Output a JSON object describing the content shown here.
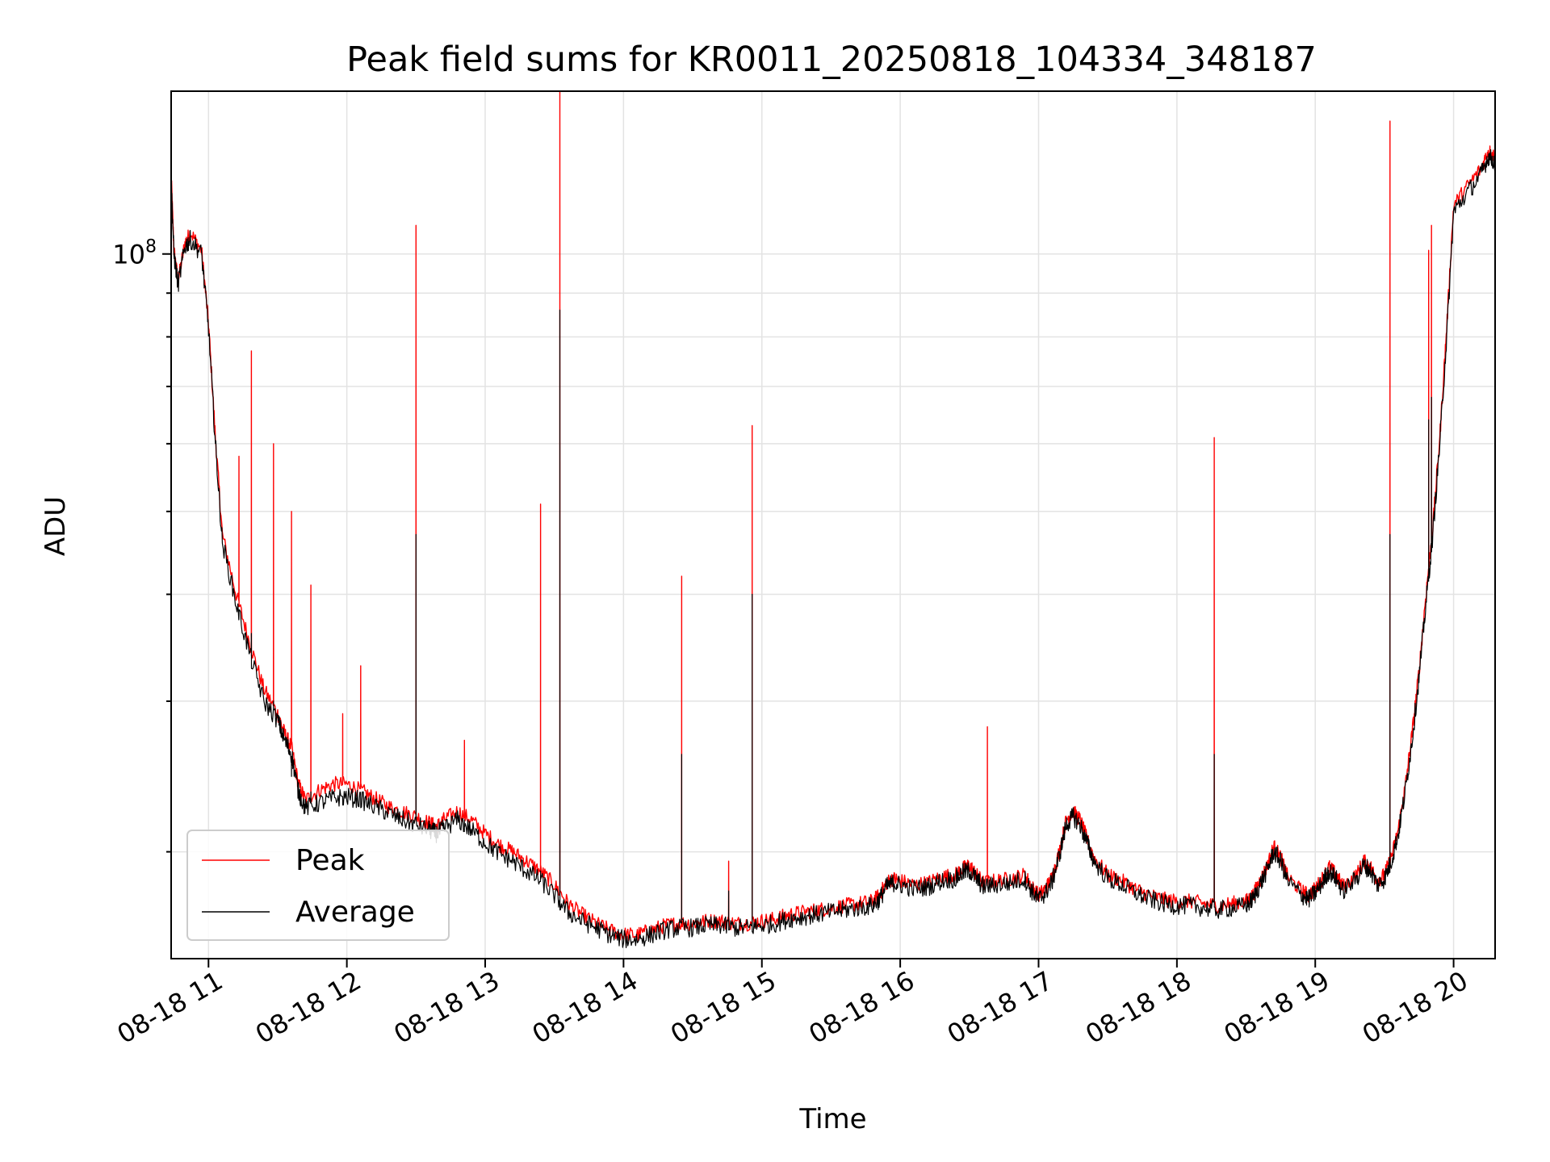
{
  "chart_data": {
    "type": "line",
    "title": "Peak field sums for KR0011_20250818_104334_348187",
    "xlabel": "Time",
    "ylabel": "ADU",
    "y_scale": "log",
    "x_tick_labels": [
      "08-18 11",
      "08-18 12",
      "08-18 13",
      "08-18 14",
      "08-18 15",
      "08-18 16",
      "08-18 17",
      "08-18 18",
      "08-18 19",
      "08-18 20"
    ],
    "y_tick_label": {
      "base": "10",
      "exponent": "8"
    },
    "x_range_hours": [
      10.73,
      20.3
    ],
    "ylim": [
      15000000,
      155000000
    ],
    "grid": true,
    "legend_position": "lower-left",
    "colors": {
      "Peak": "#ff0000",
      "Average": "#000000"
    },
    "series": [
      {
        "name": "Average",
        "points": [
          [
            10.73,
            122000000
          ],
          [
            10.75,
            100000000
          ],
          [
            10.78,
            92000000
          ],
          [
            10.83,
            102000000
          ],
          [
            10.87,
            104000000
          ],
          [
            10.95,
            100000000
          ],
          [
            11.0,
            82000000
          ],
          [
            11.05,
            60000000
          ],
          [
            11.1,
            46000000
          ],
          [
            11.2,
            39000000
          ],
          [
            11.3,
            34000000
          ],
          [
            11.4,
            30000000
          ],
          [
            11.5,
            28500000
          ],
          [
            11.55,
            27000000
          ],
          [
            11.6,
            26000000
          ],
          [
            11.65,
            23500000
          ],
          [
            11.7,
            22500000
          ],
          [
            11.8,
            22800000
          ],
          [
            11.9,
            23100000
          ],
          [
            12.0,
            23200000
          ],
          [
            12.1,
            23000000
          ],
          [
            12.2,
            22600000
          ],
          [
            12.3,
            22200000
          ],
          [
            12.4,
            21800000
          ],
          [
            12.5,
            21500000
          ],
          [
            12.6,
            21200000
          ],
          [
            12.65,
            21000000
          ],
          [
            12.7,
            21300000
          ],
          [
            12.8,
            21800000
          ],
          [
            12.9,
            21200000
          ],
          [
            13.0,
            20500000
          ],
          [
            13.1,
            19900000
          ],
          [
            13.2,
            19500000
          ],
          [
            13.3,
            19000000
          ],
          [
            13.4,
            18500000
          ],
          [
            13.5,
            17800000
          ],
          [
            13.6,
            17000000
          ],
          [
            13.7,
            16600000
          ],
          [
            13.8,
            16300000
          ],
          [
            13.9,
            16000000
          ],
          [
            14.0,
            15800000
          ],
          [
            14.1,
            15800000
          ],
          [
            14.2,
            16000000
          ],
          [
            14.3,
            16200000
          ],
          [
            14.4,
            16300000
          ],
          [
            14.5,
            16300000
          ],
          [
            14.6,
            16400000
          ],
          [
            14.7,
            16400000
          ],
          [
            14.8,
            16300000
          ],
          [
            14.9,
            16300000
          ],
          [
            15.0,
            16400000
          ],
          [
            15.1,
            16500000
          ],
          [
            15.2,
            16700000
          ],
          [
            15.3,
            16800000
          ],
          [
            15.4,
            16900000
          ],
          [
            15.5,
            17000000
          ],
          [
            15.6,
            17100000
          ],
          [
            15.7,
            17200000
          ],
          [
            15.8,
            17300000
          ],
          [
            15.85,
            17600000
          ],
          [
            15.9,
            18200000
          ],
          [
            15.95,
            18400000
          ],
          [
            16.0,
            18300000
          ],
          [
            16.1,
            18100000
          ],
          [
            16.2,
            18200000
          ],
          [
            16.3,
            18500000
          ],
          [
            16.4,
            18600000
          ],
          [
            16.45,
            18900000
          ],
          [
            16.5,
            19000000
          ],
          [
            16.55,
            18600000
          ],
          [
            16.6,
            18200000
          ],
          [
            16.7,
            18300000
          ],
          [
            16.8,
            18400000
          ],
          [
            16.9,
            18600000
          ],
          [
            16.95,
            18000000
          ],
          [
            17.0,
            17600000
          ],
          [
            17.05,
            17900000
          ],
          [
            17.1,
            18500000
          ],
          [
            17.15,
            19800000
          ],
          [
            17.2,
            21500000
          ],
          [
            17.25,
            22000000
          ],
          [
            17.3,
            21500000
          ],
          [
            17.35,
            20500000
          ],
          [
            17.4,
            19500000
          ],
          [
            17.5,
            18600000
          ],
          [
            17.6,
            18300000
          ],
          [
            17.7,
            17900000
          ],
          [
            17.8,
            17600000
          ],
          [
            17.9,
            17400000
          ],
          [
            18.0,
            17300000
          ],
          [
            18.1,
            17300000
          ],
          [
            18.2,
            17200000
          ],
          [
            18.3,
            17100000
          ],
          [
            18.4,
            17200000
          ],
          [
            18.5,
            17300000
          ],
          [
            18.55,
            17600000
          ],
          [
            18.6,
            18300000
          ],
          [
            18.65,
            19000000
          ],
          [
            18.7,
            20000000
          ],
          [
            18.75,
            19500000
          ],
          [
            18.8,
            18500000
          ],
          [
            18.9,
            17800000
          ],
          [
            18.95,
            17600000
          ],
          [
            19.0,
            17900000
          ],
          [
            19.05,
            18400000
          ],
          [
            19.1,
            19000000
          ],
          [
            19.15,
            18600000
          ],
          [
            19.2,
            18000000
          ],
          [
            19.3,
            18600000
          ],
          [
            19.35,
            19300000
          ],
          [
            19.4,
            19000000
          ],
          [
            19.45,
            18300000
          ],
          [
            19.5,
            18600000
          ],
          [
            19.55,
            19500000
          ],
          [
            19.6,
            21000000
          ],
          [
            19.65,
            23500000
          ],
          [
            19.7,
            27000000
          ],
          [
            19.75,
            32000000
          ],
          [
            19.8,
            39000000
          ],
          [
            19.85,
            47000000
          ],
          [
            19.9,
            60000000
          ],
          [
            19.95,
            80000000
          ],
          [
            20.0,
            112000000
          ],
          [
            20.1,
            118000000
          ],
          [
            20.2,
            124000000
          ],
          [
            20.25,
            130000000
          ],
          [
            20.3,
            128000000
          ]
        ]
      },
      {
        "name": "Peak",
        "points": [
          [
            10.73,
            124000000
          ],
          [
            10.75,
            101000000
          ],
          [
            10.78,
            93000000
          ],
          [
            10.83,
            103000000
          ],
          [
            10.87,
            106000000
          ],
          [
            10.95,
            101000000
          ],
          [
            11.0,
            83000000
          ],
          [
            11.05,
            61000000
          ],
          [
            11.1,
            47000000
          ],
          [
            11.2,
            40000000
          ],
          [
            11.3,
            35000000
          ],
          [
            11.4,
            31000000
          ],
          [
            11.5,
            29000000
          ],
          [
            11.55,
            27500000
          ],
          [
            11.6,
            26500000
          ],
          [
            11.65,
            24000000
          ],
          [
            11.7,
            23000000
          ],
          [
            11.8,
            23600000
          ],
          [
            11.9,
            24000000
          ],
          [
            12.0,
            24000000
          ],
          [
            12.1,
            23600000
          ],
          [
            12.2,
            23100000
          ],
          [
            12.3,
            22600000
          ],
          [
            12.4,
            22300000
          ],
          [
            12.5,
            22000000
          ],
          [
            12.6,
            21600000
          ],
          [
            12.65,
            21400000
          ],
          [
            12.7,
            21800000
          ],
          [
            12.8,
            22300000
          ],
          [
            12.9,
            21800000
          ],
          [
            13.0,
            21000000
          ],
          [
            13.1,
            20400000
          ],
          [
            13.2,
            20000000
          ],
          [
            13.3,
            19500000
          ],
          [
            13.4,
            19000000
          ],
          [
            13.5,
            18300000
          ],
          [
            13.6,
            17400000
          ],
          [
            13.7,
            16900000
          ],
          [
            13.8,
            16500000
          ],
          [
            13.9,
            16200000
          ],
          [
            14.0,
            16000000
          ],
          [
            14.1,
            16000000
          ],
          [
            14.2,
            16200000
          ],
          [
            14.3,
            16400000
          ],
          [
            14.4,
            16500000
          ],
          [
            14.5,
            16500000
          ],
          [
            14.6,
            16600000
          ],
          [
            14.7,
            16600000
          ],
          [
            14.8,
            16500000
          ],
          [
            14.9,
            16500000
          ],
          [
            15.0,
            16600000
          ],
          [
            15.1,
            16700000
          ],
          [
            15.2,
            16900000
          ],
          [
            15.3,
            17000000
          ],
          [
            15.4,
            17100000
          ],
          [
            15.5,
            17200000
          ],
          [
            15.6,
            17300000
          ],
          [
            15.7,
            17400000
          ],
          [
            15.8,
            17500000
          ],
          [
            15.85,
            17800000
          ],
          [
            15.9,
            18400000
          ],
          [
            15.95,
            18600000
          ],
          [
            16.0,
            18500000
          ],
          [
            16.1,
            18300000
          ],
          [
            16.2,
            18400000
          ],
          [
            16.3,
            18700000
          ],
          [
            16.4,
            18800000
          ],
          [
            16.45,
            19100000
          ],
          [
            16.5,
            19300000
          ],
          [
            16.55,
            18800000
          ],
          [
            16.6,
            18400000
          ],
          [
            16.7,
            18500000
          ],
          [
            16.8,
            18600000
          ],
          [
            16.9,
            18800000
          ],
          [
            16.95,
            18200000
          ],
          [
            17.0,
            17800000
          ],
          [
            17.05,
            18100000
          ],
          [
            17.1,
            18700000
          ],
          [
            17.15,
            20000000
          ],
          [
            17.2,
            21800000
          ],
          [
            17.25,
            22300000
          ],
          [
            17.3,
            21800000
          ],
          [
            17.35,
            20700000
          ],
          [
            17.4,
            19700000
          ],
          [
            17.5,
            18800000
          ],
          [
            17.6,
            18500000
          ],
          [
            17.7,
            18100000
          ],
          [
            17.8,
            17800000
          ],
          [
            17.9,
            17600000
          ],
          [
            18.0,
            17500000
          ],
          [
            18.1,
            17500000
          ],
          [
            18.2,
            17400000
          ],
          [
            18.3,
            17300000
          ],
          [
            18.4,
            17400000
          ],
          [
            18.5,
            17500000
          ],
          [
            18.55,
            17800000
          ],
          [
            18.6,
            18500000
          ],
          [
            18.65,
            19200000
          ],
          [
            18.7,
            20300000
          ],
          [
            18.75,
            19700000
          ],
          [
            18.8,
            18700000
          ],
          [
            18.9,
            18000000
          ],
          [
            18.95,
            17800000
          ],
          [
            19.0,
            18100000
          ],
          [
            19.05,
            18600000
          ],
          [
            19.1,
            19200000
          ],
          [
            19.15,
            18800000
          ],
          [
            19.2,
            18200000
          ],
          [
            19.3,
            18800000
          ],
          [
            19.35,
            19500000
          ],
          [
            19.4,
            19200000
          ],
          [
            19.45,
            18500000
          ],
          [
            19.5,
            18800000
          ],
          [
            19.55,
            19700000
          ],
          [
            19.6,
            21200000
          ],
          [
            19.65,
            23800000
          ],
          [
            19.7,
            27500000
          ],
          [
            19.75,
            32500000
          ],
          [
            19.8,
            40000000
          ],
          [
            19.85,
            48000000
          ],
          [
            19.9,
            61000000
          ],
          [
            19.95,
            82000000
          ],
          [
            20.0,
            114000000
          ],
          [
            20.1,
            120000000
          ],
          [
            20.2,
            126000000
          ],
          [
            20.25,
            132000000
          ],
          [
            20.3,
            130000000
          ]
        ],
        "spikes": [
          {
            "x": 11.22,
            "peak": 58000000,
            "avg": 38000000
          },
          {
            "x": 11.31,
            "peak": 77000000,
            "avg": 36000000
          },
          {
            "x": 11.47,
            "peak": 60000000,
            "avg": 30000000
          },
          {
            "x": 11.6,
            "peak": 50000000,
            "avg": 24500000
          },
          {
            "x": 11.74,
            "peak": 41000000,
            "avg": 23500000
          },
          {
            "x": 11.97,
            "peak": 29000000,
            "avg": 23000000
          },
          {
            "x": 12.1,
            "peak": 33000000,
            "avg": 23000000
          },
          {
            "x": 12.5,
            "peak": 108000000,
            "avg": 47000000
          },
          {
            "x": 12.85,
            "peak": 27000000,
            "avg": 21800000
          },
          {
            "x": 13.4,
            "peak": 51000000,
            "avg": 19000000
          },
          {
            "x": 13.54,
            "peak": 155000000,
            "avg": 86000000
          },
          {
            "x": 14.42,
            "peak": 42000000,
            "avg": 26000000
          },
          {
            "x": 14.76,
            "peak": 19500000,
            "avg": 18000000
          },
          {
            "x": 14.93,
            "peak": 63000000,
            "avg": 40000000
          },
          {
            "x": 16.63,
            "peak": 28000000,
            "avg": 18500000
          },
          {
            "x": 18.27,
            "peak": 61000000,
            "avg": 26000000
          },
          {
            "x": 19.54,
            "peak": 143000000,
            "avg": 47000000
          },
          {
            "x": 19.82,
            "peak": 101000000,
            "avg": 64000000
          },
          {
            "x": 19.84,
            "peak": 108000000,
            "avg": 68000000
          }
        ]
      }
    ]
  }
}
